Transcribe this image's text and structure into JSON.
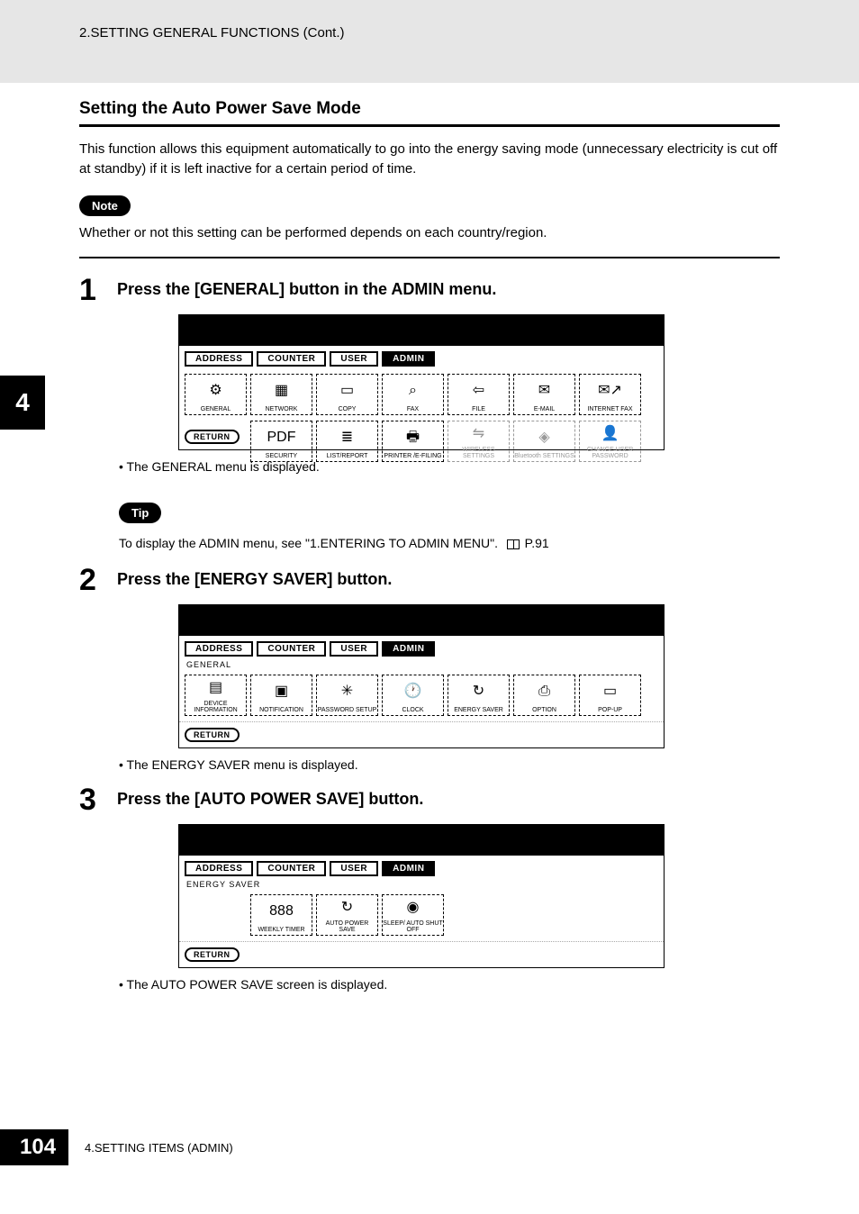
{
  "header": {
    "breadcrumb": "2.SETTING GENERAL FUNCTIONS (Cont.)"
  },
  "section": {
    "title": "Setting the Auto Power Save Mode"
  },
  "intro": "This function allows this equipment automatically to go into the energy saving mode (unnecessary electricity is cut off at standby) if it is left inactive for a certain period of time.",
  "note": {
    "label": "Note",
    "text": "Whether or not this setting can be performed depends on each country/region."
  },
  "chapter_tab": "4",
  "steps": [
    {
      "num": "1",
      "title": "Press the [GENERAL] button in the ADMIN menu.",
      "bullet": "The GENERAL menu is displayed."
    },
    {
      "num": "2",
      "title": "Press the [ENERGY SAVER] button.",
      "bullet": "The ENERGY SAVER menu is displayed."
    },
    {
      "num": "3",
      "title": "Press the [AUTO POWER SAVE] button.",
      "bullet": "The AUTO POWER SAVE screen is displayed."
    }
  ],
  "tip": {
    "label": "Tip",
    "text_prefix": "To display the ADMIN menu, see \"1.ENTERING TO ADMIN MENU\".",
    "page_ref": "P.91"
  },
  "ui_tabs": [
    "ADDRESS",
    "COUNTER",
    "USER",
    "ADMIN"
  ],
  "screenshot1": {
    "row1": [
      {
        "label": "GENERAL",
        "icon": "⚙"
      },
      {
        "label": "NETWORK",
        "icon": "▦"
      },
      {
        "label": "COPY",
        "icon": "▭"
      },
      {
        "label": "FAX",
        "icon": "⌕"
      },
      {
        "label": "FILE",
        "icon": "⇦"
      },
      {
        "label": "E-MAIL",
        "icon": "✉"
      },
      {
        "label": "INTERNET FAX",
        "icon": "✉↗"
      }
    ],
    "row2": [
      {
        "label": "SECURITY",
        "icon": "PDF"
      },
      {
        "label": "LIST/REPORT",
        "icon": "≣"
      },
      {
        "label": "PRINTER /E-FILING",
        "icon": "🖶"
      },
      {
        "label": "WIRELESS SETTINGS",
        "icon": "⇋",
        "disabled": true
      },
      {
        "label": "Bluetooth SETTINGS",
        "icon": "◈",
        "disabled": true
      },
      {
        "label": "CHANGE USER PASSWORD",
        "icon": "👤",
        "disabled": true
      }
    ],
    "return": "RETURN"
  },
  "screenshot2": {
    "sublabel": "GENERAL",
    "buttons": [
      {
        "label": "DEVICE INFORMATION",
        "icon": "▤"
      },
      {
        "label": "NOTIFICATION",
        "icon": "▣"
      },
      {
        "label": "PASSWORD SETUP",
        "icon": "✳"
      },
      {
        "label": "CLOCK",
        "icon": "🕐"
      },
      {
        "label": "ENERGY SAVER",
        "icon": "↻"
      },
      {
        "label": "OPTION",
        "icon": "⎙"
      },
      {
        "label": "POP-UP",
        "icon": "▭"
      }
    ],
    "return": "RETURN"
  },
  "screenshot3": {
    "sublabel": "ENERGY SAVER",
    "buttons": [
      {
        "label": "WEEKLY TIMER",
        "icon": "888"
      },
      {
        "label": "AUTO POWER SAVE",
        "icon": "↻"
      },
      {
        "label": "SLEEP/ AUTO SHUT OFF",
        "icon": "◉"
      }
    ],
    "return": "RETURN"
  },
  "footer": {
    "page": "104",
    "text": "4.SETTING ITEMS (ADMIN)"
  },
  "colors": {
    "header_bg": "#e6e6e6",
    "text": "#000000",
    "page_bg": "#ffffff"
  }
}
